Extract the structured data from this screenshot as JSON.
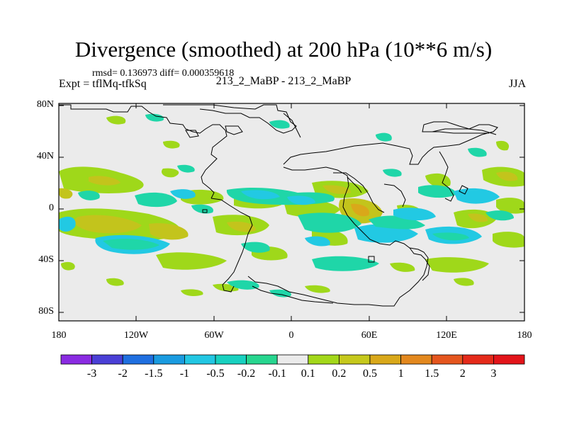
{
  "title": "Divergence (smoothed) at 200 hPa (10**6 m/s)",
  "stats_line": "rmsd= 0.136973 diff= 0.000359618",
  "experiment": "Expt = tflMq-tfkSq",
  "center_label": "213_2_MaBP - 213_2_MaBP",
  "season": "JJA",
  "y_axis": {
    "ticks": [
      "80N",
      "40N",
      "0",
      "40S",
      "80S"
    ]
  },
  "x_axis": {
    "ticks": [
      "180",
      "120W",
      "60W",
      "0",
      "60E",
      "120E",
      "180"
    ]
  },
  "colorbar": {
    "labels": [
      "-3",
      "-2",
      "-1.5",
      "-1",
      "-0.5",
      "-0.2",
      "-0.1",
      "0.1",
      "0.2",
      "0.5",
      "1",
      "1.5",
      "2",
      "3"
    ],
    "colors": [
      "#8a2be2",
      "#4a3fd6",
      "#1f6fe0",
      "#1a9be0",
      "#22c7e3",
      "#18d1c0",
      "#27d68f",
      "#ebebeb",
      "#a3d81a",
      "#c6c91c",
      "#d9a81a",
      "#e3881e",
      "#e5561e",
      "#e52a1a",
      "#e3141a"
    ]
  },
  "colors": {
    "background": "#ebebeb",
    "green": "#9fd81a",
    "olive": "#c3c41c",
    "cyan": "#22c9e3",
    "teal": "#1fd6a8"
  }
}
